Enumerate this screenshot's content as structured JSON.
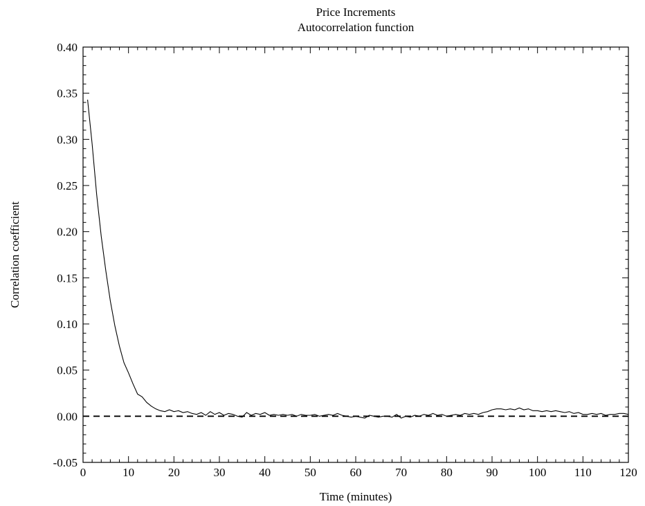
{
  "chart_data": {
    "type": "line",
    "title": "Price Increments",
    "subtitle": "Autocorrelation function",
    "xlabel": "Time (minutes)",
    "ylabel": "Correlation coefficient",
    "xlim": [
      0,
      120
    ],
    "ylim": [
      -0.05,
      0.4
    ],
    "x_ticks": [
      "0",
      "10",
      "20",
      "30",
      "40",
      "50",
      "60",
      "70",
      "80",
      "90",
      "100",
      "110",
      "120"
    ],
    "y_ticks": [
      "-0.05",
      "0.00",
      "0.05",
      "0.10",
      "0.15",
      "0.20",
      "0.25",
      "0.30",
      "0.35",
      "0.40"
    ],
    "grid": false,
    "reference_line": {
      "y": 0.0,
      "style": "dashed"
    },
    "series": [
      {
        "color": "#000000",
        "x": [
          1,
          2,
          3,
          4,
          5,
          6,
          7,
          8,
          9,
          10,
          11,
          12,
          13,
          14,
          15,
          16,
          17,
          18,
          19,
          20,
          21,
          22,
          23,
          24,
          25,
          26,
          27,
          28,
          29,
          30,
          31,
          32,
          33,
          34,
          35,
          36,
          37,
          38,
          39,
          40,
          41,
          42,
          43,
          44,
          45,
          46,
          47,
          48,
          49,
          50,
          51,
          52,
          53,
          54,
          55,
          56,
          57,
          58,
          59,
          60,
          61,
          62,
          63,
          64,
          65,
          66,
          67,
          68,
          69,
          70,
          71,
          72,
          73,
          74,
          75,
          76,
          77,
          78,
          79,
          80,
          81,
          82,
          83,
          84,
          85,
          86,
          87,
          88,
          89,
          90,
          91,
          92,
          93,
          94,
          95,
          96,
          97,
          98,
          99,
          100,
          101,
          102,
          103,
          104,
          105,
          106,
          107,
          108,
          109,
          110,
          111,
          112,
          113,
          114,
          115,
          116,
          117,
          118,
          119,
          120
        ],
        "values": [
          0.343,
          0.295,
          0.24,
          0.195,
          0.158,
          0.125,
          0.098,
          0.076,
          0.058,
          0.047,
          0.035,
          0.024,
          0.021,
          0.015,
          0.011,
          0.008,
          0.006,
          0.005,
          0.007,
          0.005,
          0.006,
          0.004,
          0.005,
          0.003,
          0.002,
          0.004,
          0.001,
          0.005,
          0.002,
          0.004,
          0.001,
          0.003,
          0.002,
          0.0,
          -0.001,
          0.004,
          0.001,
          0.003,
          0.002,
          0.004,
          0.001,
          0.002,
          0.001,
          0.002,
          0.001,
          0.002,
          0.0,
          0.002,
          0.001,
          0.001,
          0.002,
          0.0,
          0.001,
          0.002,
          0.001,
          0.003,
          0.001,
          0.0,
          -0.001,
          0.0,
          -0.001,
          -0.002,
          0.001,
          0.0,
          -0.001,
          0.0,
          0.0,
          -0.001,
          0.002,
          -0.002,
          0.0,
          -0.001,
          0.001,
          0.0,
          0.002,
          0.001,
          0.003,
          0.001,
          0.002,
          0.0,
          0.001,
          0.002,
          0.001,
          0.003,
          0.002,
          0.003,
          0.002,
          0.004,
          0.005,
          0.007,
          0.008,
          0.008,
          0.007,
          0.008,
          0.007,
          0.009,
          0.007,
          0.008,
          0.006,
          0.006,
          0.005,
          0.006,
          0.005,
          0.006,
          0.005,
          0.004,
          0.005,
          0.003,
          0.004,
          0.002,
          0.002,
          0.003,
          0.002,
          0.003,
          0.001,
          0.002,
          0.002,
          0.003,
          0.003,
          0.002
        ]
      }
    ]
  }
}
